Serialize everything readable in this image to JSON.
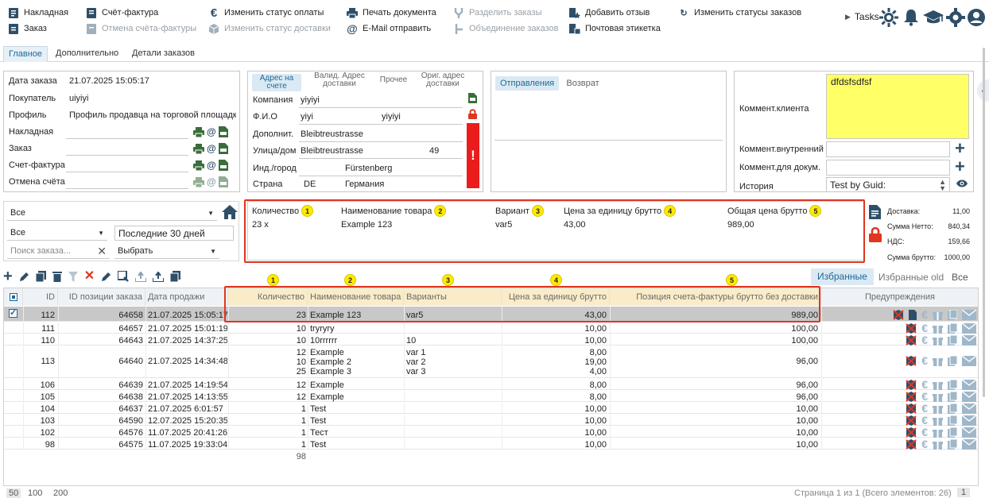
{
  "toolbar": {
    "col1": [
      {
        "label": "Накладная",
        "icon": "invoice-doc-icon"
      },
      {
        "label": "Заказ",
        "icon": "order-doc-icon"
      }
    ],
    "col2": [
      {
        "label": "Счёт-фактура",
        "icon": "invoice-icon"
      },
      {
        "label": "Отмена счёта-фактуры",
        "icon": "cancel-invoice-icon"
      }
    ],
    "col3": [
      {
        "label": "Изменить статус оплаты",
        "icon": "euro-icon"
      },
      {
        "label": "Изменить статус доставки",
        "icon": "delivery-box-icon"
      }
    ],
    "col4": [
      {
        "label": "Печать документа",
        "icon": "printer-icon"
      },
      {
        "label": "E-Mail отправить",
        "icon": "at-icon"
      }
    ],
    "col5": [
      {
        "label": "Разделить заказы",
        "icon": "split-icon"
      },
      {
        "label": "Объединение заказов",
        "icon": "merge-icon"
      }
    ],
    "col6": [
      {
        "label": "Добавить отзыв",
        "icon": "review-icon"
      },
      {
        "label": "Почтовая этикетка",
        "icon": "postal-label-icon"
      }
    ],
    "col7": [
      {
        "label": "Изменить статусы заказов",
        "icon": "status-change-icon"
      }
    ],
    "tasks": "Tasks"
  },
  "tabs": [
    "Главное",
    "Дополнительно",
    "Детали заказов"
  ],
  "order_info": {
    "date_label": "Дата заказа",
    "date": "21.07.2025 15:05:17",
    "buyer_label": "Покупатель",
    "buyer": "uiyiyi",
    "profile_label": "Профиль",
    "profile": "Профиль продавца на торговой площадке",
    "waybill_label": "Накладная",
    "order_label": "Заказ",
    "invoice_label": "Счет-фактура",
    "cancel_label": "Отмена счёта"
  },
  "address": {
    "tabs": [
      "Адрес на счете",
      "Валид. Адрес доставки",
      "Прочее",
      "Ориг. адрес доставки"
    ],
    "company_label": "Компания",
    "company": "yiyiyi",
    "name_label": "Ф.И.О",
    "first": "yiyi",
    "last": "yiyiyi",
    "extra_label": "Дополнит.",
    "extra": "Bleibtreustrasse",
    "street_label": "Улица/дом",
    "street": "Bleibtreustrasse",
    "house": "49",
    "city_label": "Инд./город",
    "city": "Fürstenberg",
    "country_label": "Страна",
    "country_code": "DE",
    "country": "Германия",
    "warning": "!"
  },
  "shipments": {
    "tabs": [
      "Отправления",
      "Возврат"
    ]
  },
  "comments": {
    "client_label": "Коммент.клиента",
    "client_text": "dfdsfsdfsf",
    "internal_label": "Коммент.внутренний",
    "doc_label": "Коммент.для докум.",
    "history_label": "История",
    "history_value": "Test by Guid:"
  },
  "filters": {
    "filter1": "Все",
    "filter2": "Все",
    "period": "Последние 30 дней",
    "search_placeholder": "Поиск заказа...",
    "choose": "Выбрать"
  },
  "items_box": {
    "headers": [
      {
        "label": "Количество",
        "n": "1"
      },
      {
        "label": "Наименование товара",
        "n": "2"
      },
      {
        "label": "Вариант",
        "n": "3"
      },
      {
        "label": "Цена за единицу брутто",
        "n": "4"
      },
      {
        "label": "Общая цена брутто",
        "n": "5"
      }
    ],
    "row": {
      "qty": "23 x",
      "name": "Example 123",
      "variant": "var5",
      "price": "43,00",
      "total": "989,00"
    }
  },
  "totals": {
    "delivery_label": "Доставка:",
    "delivery": "11,00",
    "net_label": "Сумма Нетто:",
    "net": "840,34",
    "vat_label": "НДС:",
    "vat": "159,66",
    "gross_label": "Сумма брутто:",
    "gross": "1000,00"
  },
  "grid_tabs": {
    "fav": "Избранные",
    "fav_old": "Избранные old",
    "all": "Все"
  },
  "grid": {
    "badges": [
      "1",
      "2",
      "3",
      "4",
      "5"
    ],
    "columns": [
      "ID",
      "ID позиции заказа",
      "Дата продажи",
      "Количество",
      "Наименование товара",
      "Варианты",
      "Цена за единицу брутто",
      "Позиция счета-фактуры брутто без доставки",
      "Предупреждения"
    ],
    "rows": [
      {
        "id": "112",
        "pos": "64658",
        "date": "21.07.2025 15:05:17",
        "qty": [
          "23"
        ],
        "name": [
          "Example 123"
        ],
        "var": [
          "var5"
        ],
        "price": [
          "43,00"
        ],
        "total": "989,00",
        "selected": true
      },
      {
        "id": "111",
        "pos": "64657",
        "date": "21.07.2025 15:01:19",
        "qty": [
          "10"
        ],
        "name": [
          "tryryry"
        ],
        "var": [
          ""
        ],
        "price": [
          "10,00"
        ],
        "total": "100,00"
      },
      {
        "id": "110",
        "pos": "64643",
        "date": "21.07.2025 14:37:25",
        "qty": [
          "10"
        ],
        "name": [
          "10rrrrrr"
        ],
        "var": [
          "10"
        ],
        "price": [
          "10,00"
        ],
        "total": "100,00"
      },
      {
        "id": "113",
        "pos": "64640",
        "date": "21.07.2025 14:34:48",
        "qty": [
          "12",
          "10",
          "25"
        ],
        "name": [
          "Example",
          "Example 2",
          "Example 3"
        ],
        "var": [
          "var 1",
          "var 2",
          "var 3"
        ],
        "price": [
          "8,00",
          "19,00",
          "4,00"
        ],
        "total": "96,00"
      },
      {
        "id": "106",
        "pos": "64639",
        "date": "21.07.2025 14:19:54",
        "qty": [
          "12"
        ],
        "name": [
          "Example"
        ],
        "var": [
          ""
        ],
        "price": [
          "8,00"
        ],
        "total": "96,00"
      },
      {
        "id": "105",
        "pos": "64638",
        "date": "21.07.2025 14:13:55",
        "qty": [
          "12"
        ],
        "name": [
          "Example"
        ],
        "var": [
          ""
        ],
        "price": [
          "8,00"
        ],
        "total": "96,00"
      },
      {
        "id": "104",
        "pos": "64637",
        "date": "21.07.2025 6:01:57",
        "qty": [
          "1"
        ],
        "name": [
          "Test"
        ],
        "var": [
          ""
        ],
        "price": [
          "10,00"
        ],
        "total": "10,00"
      },
      {
        "id": "103",
        "pos": "64590",
        "date": "12.07.2025 15:20:35",
        "qty": [
          "1"
        ],
        "name": [
          "Test"
        ],
        "var": [
          ""
        ],
        "price": [
          "10,00"
        ],
        "total": "10,00"
      },
      {
        "id": "102",
        "pos": "64576",
        "date": "11.07.2025 20:41:26",
        "qty": [
          "1"
        ],
        "name": [
          "Тест"
        ],
        "var": [
          ""
        ],
        "price": [
          "10,00"
        ],
        "total": "10,00"
      },
      {
        "id": "98",
        "pos": "64575",
        "date": "11.07.2025 19:33:04",
        "qty": [
          "1"
        ],
        "name": [
          "Test"
        ],
        "var": [
          ""
        ],
        "price": [
          "10,00"
        ],
        "total": "10,00"
      }
    ],
    "sum_qty": "98"
  },
  "footer": {
    "page_sizes": [
      "50",
      "100",
      "200"
    ],
    "paging": "Страница 1 из 1 (Всего элементов: 26)",
    "page": "1"
  },
  "colors": {
    "accent": "#1b6a96",
    "highlight": "#e0351f",
    "badge": "#ffeb00",
    "comment_bg": "#ffff66"
  }
}
